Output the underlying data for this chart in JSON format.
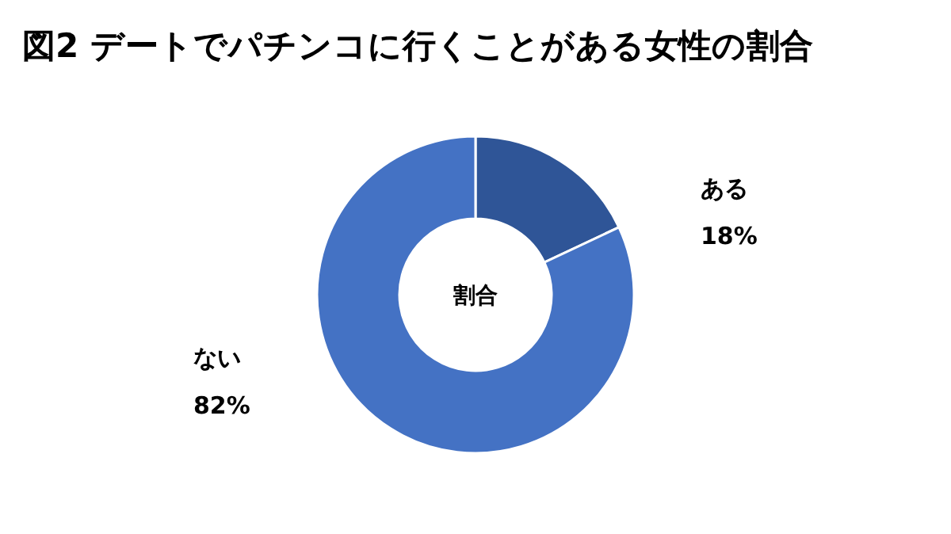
{
  "chart_data": {
    "type": "donut",
    "title": "図2 デートでパチンコに行くことがある女性の割合",
    "categories": [
      "ある",
      "ない"
    ],
    "values": [
      18,
      82
    ],
    "colors": [
      "#2f5597",
      "#4472c4"
    ],
    "annotations": [
      "割合"
    ],
    "value_labels": [
      "18%",
      "82%"
    ]
  }
}
